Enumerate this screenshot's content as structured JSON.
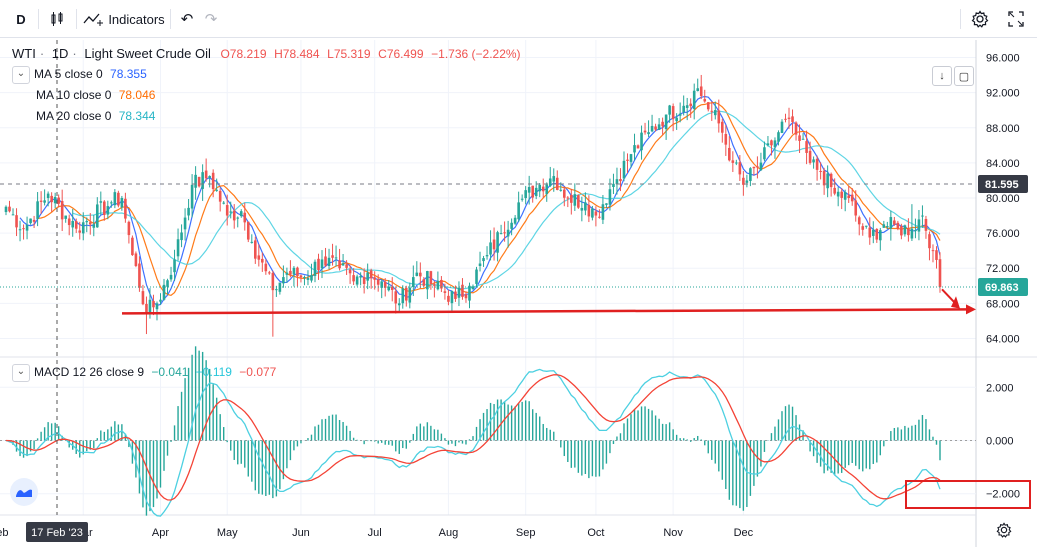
{
  "toolbar": {
    "interval": "D",
    "indicators_label": "Indicators"
  },
  "legend": {
    "symbol": "WTI",
    "interval": "1D",
    "name": "Light Sweet Crude Oil",
    "open": "O78.219",
    "high": "H78.484",
    "low": "L75.319",
    "close": "C76.499",
    "change": "−1.736 (−2.22%)",
    "ma5_label": "MA 5 close 0",
    "ma5_value": "78.355",
    "ma10_label": "MA 10 close 0",
    "ma10_value": "78.046",
    "ma20_label": "MA 20 close 0",
    "ma20_value": "78.344",
    "macd_label": "MACD 12 26 close 9",
    "macd_hist": "−0.041",
    "macd_macd": "−0.119",
    "macd_signal": "−0.077"
  },
  "colors": {
    "up": "#26a69a",
    "down": "#ef5350",
    "ma5": "#2962ff",
    "ma10": "#ff6d00",
    "ma20": "#4dd0e1",
    "macd": "#4dd0e1",
    "signal": "#f44336",
    "hist_up": "#26a69a",
    "hist_down": "#26a69a",
    "annotation": "#e02020"
  },
  "chart_data": [
    {
      "type": "candlestick",
      "title": "WTI · 1D · Light Sweet Crude Oil",
      "x_labels": [
        "Feb",
        "Mar",
        "Apr",
        "May",
        "Jun",
        "Jul",
        "Aug",
        "Sep",
        "Oct",
        "Nov",
        "Dec"
      ],
      "crosshair_date": "17 Feb '23",
      "ylim": [
        62,
        98
      ],
      "y_ticks": [
        "96.000",
        "92.000",
        "88.000",
        "84.000",
        "80.000",
        "76.000",
        "72.000",
        "68.000",
        "64.000"
      ],
      "y_tick_values": [
        96,
        92,
        88,
        84,
        80,
        76,
        72,
        68,
        64
      ],
      "crosshair_price": 81.595,
      "crosshair_price_label": "81.595",
      "last_price": 69.863,
      "last_price_label": "69.863",
      "support_level": 67.2,
      "anchor_prices": [
        [
          0,
          79.0
        ],
        [
          5,
          76.5
        ],
        [
          12,
          80.5
        ],
        [
          20,
          76.5
        ],
        [
          30,
          79.5
        ],
        [
          33,
          80.0
        ],
        [
          36,
          73.5
        ],
        [
          40,
          67.0
        ],
        [
          43,
          68.0
        ],
        [
          48,
          73.0
        ],
        [
          53,
          81.5
        ],
        [
          58,
          82.5
        ],
        [
          63,
          78.0
        ],
        [
          67,
          78.5
        ],
        [
          70,
          75.0
        ],
        [
          76,
          69.5
        ],
        [
          80,
          71.5
        ],
        [
          85,
          71.0
        ],
        [
          90,
          73.0
        ],
        [
          95,
          72.0
        ],
        [
          99,
          70.5
        ],
        [
          103,
          71.5
        ],
        [
          107,
          70.5
        ],
        [
          112,
          68.0
        ],
        [
          117,
          71.5
        ],
        [
          122,
          70.0
        ],
        [
          128,
          68.5
        ],
        [
          132,
          70.0
        ],
        [
          137,
          73.5
        ],
        [
          141,
          76.0
        ],
        [
          146,
          79.5
        ],
        [
          152,
          81.5
        ],
        [
          156,
          82.5
        ],
        [
          160,
          80.0
        ],
        [
          165,
          79.5
        ],
        [
          168,
          78.0
        ],
        [
          172,
          81.0
        ],
        [
          178,
          85.0
        ],
        [
          183,
          87.5
        ],
        [
          188,
          89.5
        ],
        [
          193,
          90.5
        ],
        [
          197,
          92.5
        ],
        [
          199,
          91.0
        ],
        [
          203,
          88.5
        ],
        [
          207,
          84.0
        ],
        [
          210,
          81.5
        ],
        [
          214,
          83.5
        ],
        [
          218,
          86.0
        ],
        [
          222,
          89.0
        ],
        [
          226,
          86.5
        ],
        [
          229,
          84.0
        ],
        [
          232,
          83.0
        ],
        [
          236,
          80.5
        ],
        [
          240,
          80.0
        ],
        [
          243,
          77.0
        ],
        [
          246,
          75.5
        ],
        [
          250,
          77.0
        ],
        [
          254,
          76.5
        ],
        [
          258,
          76.5
        ],
        [
          261,
          78.0
        ],
        [
          264,
          74.0
        ],
        [
          266,
          69.86
        ]
      ],
      "ma_periods": [
        5,
        10,
        20
      ]
    },
    {
      "type": "macd",
      "title": "MACD 12 26 close 9",
      "ylim": [
        -2.8,
        3.1
      ],
      "y_ticks": [
        "2.000",
        "0.000",
        "−2.000"
      ],
      "y_tick_values": [
        2,
        0,
        -2
      ]
    }
  ],
  "annotations": {
    "support_line": "horizontal support line near 67.2",
    "box": "highlight of MACD near -2.000 in December"
  }
}
